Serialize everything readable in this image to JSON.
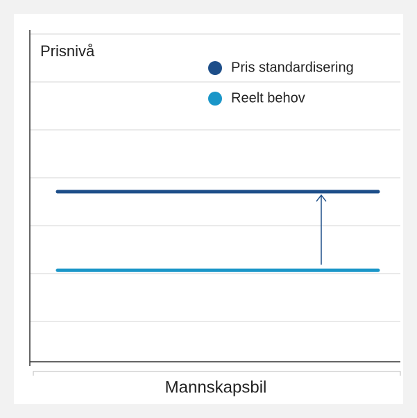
{
  "chart_data": {
    "type": "level-line",
    "ylabel": "Prisnivå",
    "categories": [
      "Mannskapsbil"
    ],
    "ylim": [
      0,
      7
    ],
    "series": [
      {
        "name": "Pris standardisering",
        "color": "#1d4e89",
        "values": [
          3.55
        ]
      },
      {
        "name": "Reelt behov",
        "color": "#1a96c8",
        "values": [
          1.91
        ]
      }
    ],
    "grid": true
  }
}
